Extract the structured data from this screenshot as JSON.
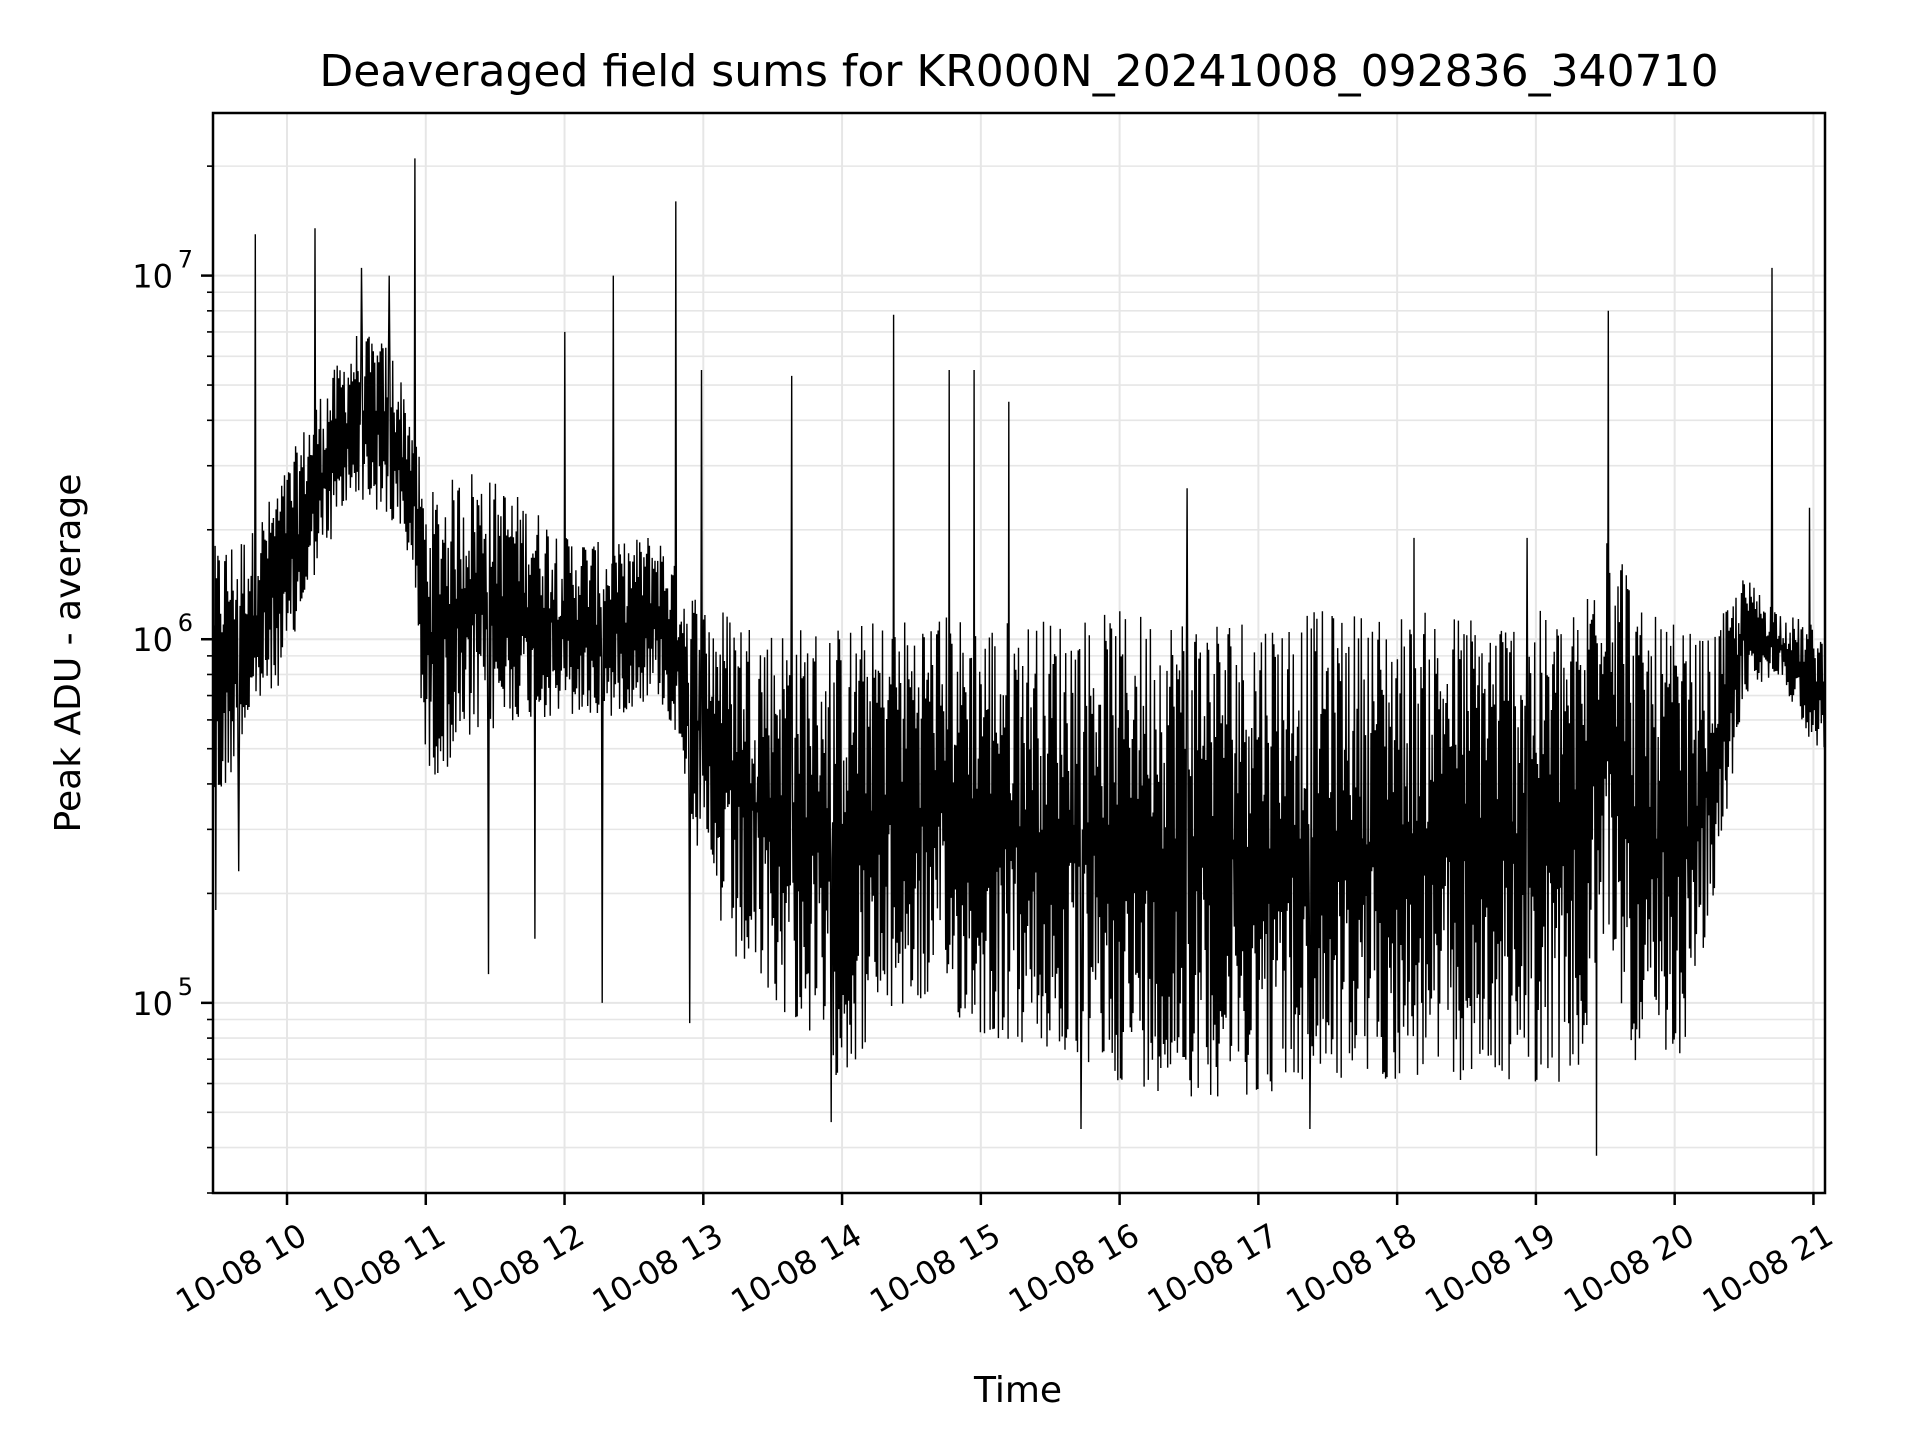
{
  "chart_data": {
    "type": "line",
    "title": "Deaveraged field sums for KR000N_20241008_092836_340710",
    "xlabel": "Time",
    "ylabel": "Peak ADU - average",
    "yscale": "log",
    "ylim": [
      30000,
      28000000
    ],
    "xlim": [
      "2024-10-08 09:28",
      "2024-10-08 21:05"
    ],
    "grid": true,
    "line_color": "#000000",
    "grid_color": "#e6e6e6",
    "x_ticks": [
      "10-08 10",
      "10-08 11",
      "10-08 12",
      "10-08 13",
      "10-08 14",
      "10-08 15",
      "10-08 16",
      "10-08 17",
      "10-08 18",
      "10-08 19",
      "10-08 20",
      "10-08 21"
    ],
    "y_ticks": [
      {
        "base": "10",
        "exp": "5",
        "value": 100000
      },
      {
        "base": "10",
        "exp": "6",
        "value": 1000000
      },
      {
        "base": "10",
        "exp": "7",
        "value": 10000000
      }
    ],
    "series": [
      {
        "x": [
          "2024-10-08 09:28",
          "2024-10-08 09:45",
          "2024-10-08 10:00",
          "2024-10-08 10:12",
          "2024-10-08 10:30",
          "2024-10-08 10:45",
          "2024-10-08 10:55",
          "2024-10-08 11:00",
          "2024-10-08 11:20",
          "2024-10-08 11:40",
          "2024-10-08 12:00",
          "2024-10-08 12:20",
          "2024-10-08 12:40",
          "2024-10-08 12:50",
          "2024-10-08 13:00",
          "2024-10-08 13:15",
          "2024-10-08 13:30",
          "2024-10-08 13:45",
          "2024-10-08 14:00",
          "2024-10-08 14:20",
          "2024-10-08 14:40",
          "2024-10-08 15:00",
          "2024-10-08 15:30",
          "2024-10-08 16:00",
          "2024-10-08 16:30",
          "2024-10-08 17:00",
          "2024-10-08 17:30",
          "2024-10-08 18:00",
          "2024-10-08 18:30",
          "2024-10-08 19:00",
          "2024-10-08 19:20",
          "2024-10-08 19:30",
          "2024-10-08 19:45",
          "2024-10-08 20:00",
          "2024-10-08 20:15",
          "2024-10-08 20:30",
          "2024-10-08 20:45",
          "2024-10-08 21:00",
          "2024-10-08 21:05"
        ],
        "low": [
          300000,
          600000,
          800000,
          1500000,
          2500000,
          2000000,
          1500000,
          400000,
          500000,
          600000,
          600000,
          600000,
          700000,
          500000,
          200000,
          120000,
          100000,
          80000,
          60000,
          90000,
          100000,
          80000,
          70000,
          60000,
          55000,
          55000,
          60000,
          60000,
          60000,
          60000,
          60000,
          150000,
          60000,
          60000,
          150000,
          700000,
          800000,
          500000,
          500000
        ],
        "high": [
          1800000,
          2000000,
          3000000,
          4500000,
          7000000,
          6500000,
          4000000,
          2500000,
          3000000,
          2500000,
          2000000,
          1800000,
          2000000,
          1500000,
          1300000,
          1200000,
          1100000,
          1100000,
          1100000,
          1150000,
          1200000,
          1150000,
          1150000,
          1200000,
          1200000,
          1200000,
          1200000,
          1200000,
          1200000,
          1200000,
          1200000,
          3000000,
          1200000,
          1100000,
          1000000,
          1500000,
          1200000,
          1100000,
          1000000
        ],
        "spikes": [
          {
            "x": "2024-10-08 09:29",
            "y": 180000
          },
          {
            "x": "2024-10-08 09:39",
            "y": 230000
          },
          {
            "x": "2024-10-08 09:46",
            "y": 13000000
          },
          {
            "x": "2024-10-08 10:12",
            "y": 13500000
          },
          {
            "x": "2024-10-08 10:32",
            "y": 10500000
          },
          {
            "x": "2024-10-08 10:44",
            "y": 10000000
          },
          {
            "x": "2024-10-08 10:55",
            "y": 21000000
          },
          {
            "x": "2024-10-08 11:27",
            "y": 120000
          },
          {
            "x": "2024-10-08 11:47",
            "y": 150000
          },
          {
            "x": "2024-10-08 12:00",
            "y": 7000000
          },
          {
            "x": "2024-10-08 12:16",
            "y": 100000
          },
          {
            "x": "2024-10-08 12:21",
            "y": 10000000
          },
          {
            "x": "2024-10-08 12:48",
            "y": 16000000
          },
          {
            "x": "2024-10-08 12:54",
            "y": 88000
          },
          {
            "x": "2024-10-08 12:59",
            "y": 5500000
          },
          {
            "x": "2024-10-08 13:38",
            "y": 5300000
          },
          {
            "x": "2024-10-08 13:55",
            "y": 47000
          },
          {
            "x": "2024-10-08 14:22",
            "y": 7800000
          },
          {
            "x": "2024-10-08 14:46",
            "y": 5500000
          },
          {
            "x": "2024-10-08 14:57",
            "y": 5500000
          },
          {
            "x": "2024-10-08 15:12",
            "y": 4500000
          },
          {
            "x": "2024-10-08 15:43",
            "y": 45000
          },
          {
            "x": "2024-10-08 16:29",
            "y": 2600000
          },
          {
            "x": "2024-10-08 17:22",
            "y": 45000
          },
          {
            "x": "2024-10-08 18:07",
            "y": 1900000
          },
          {
            "x": "2024-10-08 18:56",
            "y": 1900000
          },
          {
            "x": "2024-10-08 19:26",
            "y": 38000
          },
          {
            "x": "2024-10-08 19:31",
            "y": 8000000
          },
          {
            "x": "2024-10-08 20:42",
            "y": 10500000
          },
          {
            "x": "2024-10-08 20:58",
            "y": 2300000
          }
        ]
      }
    ]
  }
}
